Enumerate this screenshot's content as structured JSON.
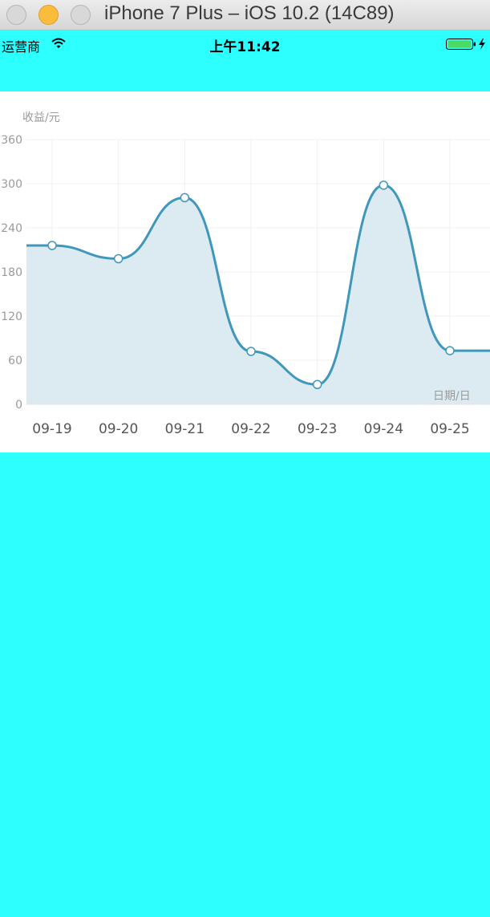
{
  "window": {
    "title": "iPhone 7 Plus – iOS 10.2 (14C89)"
  },
  "status_bar": {
    "carrier": "运营商",
    "time": "上午11:42",
    "wifi_icon": "wifi-icon",
    "battery_icon": "battery-charging-icon"
  },
  "colors": {
    "page_background": "#2dffff",
    "line": "#3f97bb",
    "area_fill": "#d6e8f0"
  },
  "chart_data": {
    "type": "area",
    "ylabel": "收益/元",
    "xlabel": "日期/日",
    "ylim": [
      0,
      360
    ],
    "y_ticks": [
      0,
      60,
      120,
      180,
      240,
      300,
      360
    ],
    "grid": true,
    "smooth": true,
    "categories": [
      "09-19",
      "09-20",
      "09-21",
      "09-22",
      "09-23",
      "09-24",
      "09-25"
    ],
    "series": [
      {
        "values": [
          216,
          198,
          281,
          72,
          27,
          298,
          73
        ]
      }
    ]
  }
}
